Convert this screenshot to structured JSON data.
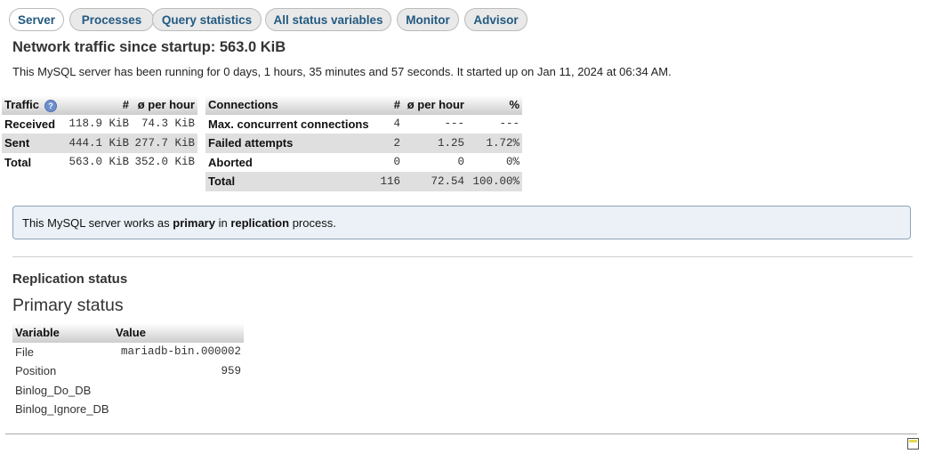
{
  "tabs": [
    {
      "label": "Server",
      "active": true
    },
    {
      "label": "Processes"
    },
    {
      "label": "Query statistics"
    },
    {
      "label": "All status variables"
    },
    {
      "label": "Monitor"
    },
    {
      "label": "Advisor"
    }
  ],
  "heading": "Network traffic since startup: 563.0 KiB",
  "uptime_text": "This MySQL server has been running for 0 days, 1 hours, 35 minutes and 57 seconds. It started up on Jan 11, 2024 at 06:34 AM.",
  "traffic": {
    "headers": [
      "Traffic",
      "#",
      "ø per hour"
    ],
    "rows": [
      {
        "label": "Received",
        "total": "118.9 KiB",
        "per_hour": "74.3 KiB"
      },
      {
        "label": "Sent",
        "total": "444.1 KiB",
        "per_hour": "277.7 KiB"
      },
      {
        "label": "Total",
        "total": "563.0 KiB",
        "per_hour": "352.0 KiB"
      }
    ]
  },
  "connections": {
    "headers": [
      "Connections",
      "#",
      "ø per hour",
      "%"
    ],
    "rows": [
      {
        "label": "Max. concurrent connections",
        "count": "4",
        "per_hour": "---",
        "pct": "---"
      },
      {
        "label": "Failed attempts",
        "count": "2",
        "per_hour": "1.25",
        "pct": "1.72%"
      },
      {
        "label": "Aborted",
        "count": "0",
        "per_hour": "0",
        "pct": "0%"
      },
      {
        "label": "Total",
        "count": "116",
        "per_hour": "72.54",
        "pct": "100.00%"
      }
    ]
  },
  "notice": {
    "prefix": "This MySQL server works as ",
    "role": "primary",
    "middle": " in ",
    "process": "replication",
    "suffix": " process."
  },
  "replication": {
    "title": "Replication status",
    "subtitle": "Primary status",
    "headers": [
      "Variable",
      "Value"
    ],
    "rows": [
      {
        "variable": "File",
        "value": "mariadb-bin.000002"
      },
      {
        "variable": "Position",
        "value": "959"
      },
      {
        "variable": "Binlog_Do_DB",
        "value": ""
      },
      {
        "variable": "Binlog_Ignore_DB",
        "value": ""
      }
    ]
  }
}
